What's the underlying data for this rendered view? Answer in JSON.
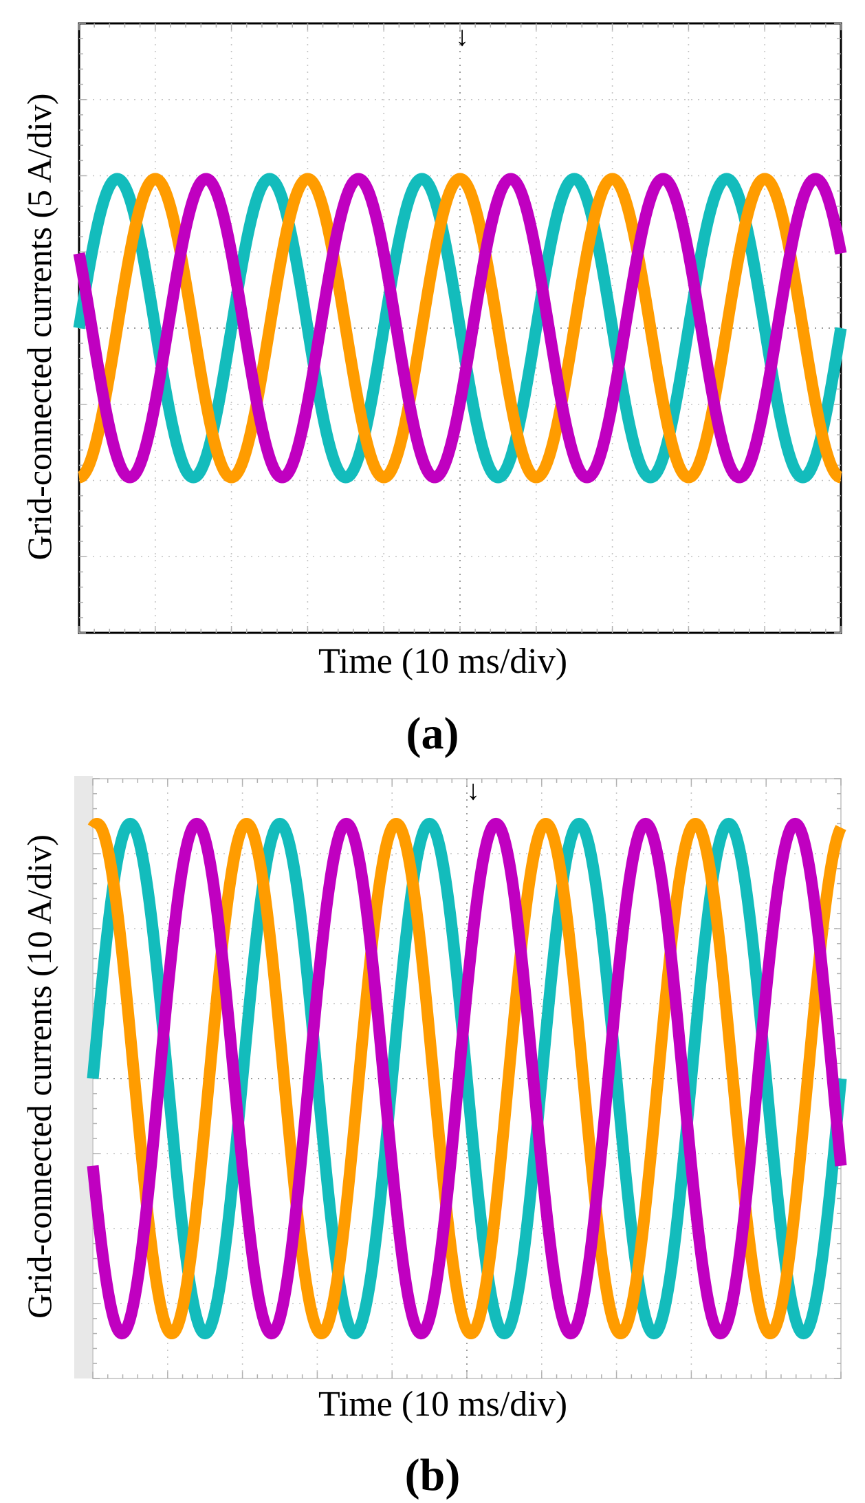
{
  "figure": {
    "panel_a_caption": "(a)",
    "panel_b_caption": "(b)"
  },
  "chart_data": [
    {
      "type": "line",
      "panel": "a",
      "xlabel": "Time (10 ms/div)",
      "ylabel": "Grid-connected currents (5 A/div)",
      "x_unit": "ms",
      "y_unit": "A",
      "xlim": [
        0,
        100
      ],
      "ylim": [
        -20,
        20
      ],
      "x_divisions": 10,
      "y_divisions": 8,
      "grid": true,
      "frequency_hz": 50,
      "series": [
        {
          "name": "phase-teal",
          "color": "#13bcbc",
          "amplitude": 9.8,
          "phase_deg": 0
        },
        {
          "name": "phase-orange",
          "color": "#ff9c00",
          "amplitude": 9.8,
          "phase_deg": 270
        },
        {
          "name": "phase-magenta",
          "color": "#c000c0",
          "amplitude": 9.8,
          "phase_deg": 150
        }
      ]
    },
    {
      "type": "line",
      "panel": "b",
      "xlabel": "Time (10 ms/div)",
      "ylabel": "Grid-connected currents (10 A/div)",
      "x_unit": "ms",
      "y_unit": "A",
      "xlim": [
        0,
        100
      ],
      "ylim": [
        -40,
        40
      ],
      "x_divisions": 10,
      "y_divisions": 8,
      "grid": true,
      "frequency_hz": 50,
      "series": [
        {
          "name": "phase-teal",
          "color": "#13bcbc",
          "amplitude": 34,
          "phase_deg": 0
        },
        {
          "name": "phase-orange",
          "color": "#ff9c00",
          "amplitude": 34,
          "phase_deg": 80
        },
        {
          "name": "phase-magenta",
          "color": "#c000c0",
          "amplitude": 34,
          "phase_deg": 200
        }
      ]
    }
  ]
}
